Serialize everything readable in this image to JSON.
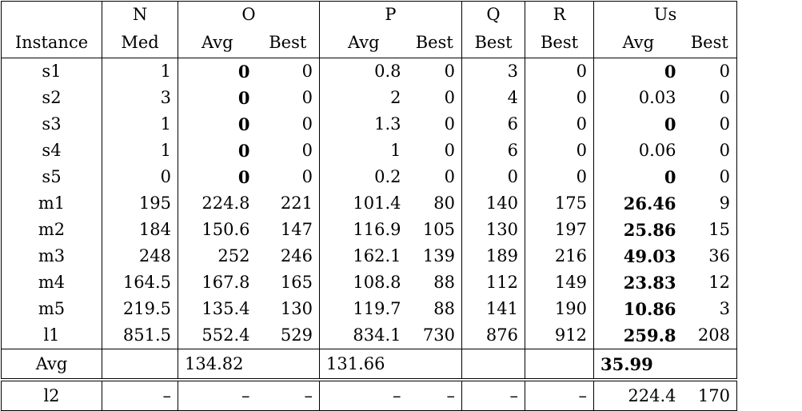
{
  "groups": [
    "",
    "N",
    "O",
    "P",
    "Q",
    "R",
    "Us"
  ],
  "subheaders": [
    "Instance",
    "Med",
    "Avg",
    "Best",
    "Avg",
    "Best",
    "Best",
    "Best",
    "Avg",
    "Best"
  ],
  "rows": [
    {
      "name": "s1",
      "n_med": "1",
      "o_avg": "0",
      "o_best": "0",
      "p_avg": "0.8",
      "p_best": "0",
      "q_best": "3",
      "r_best": "0",
      "us_avg": "0",
      "us_best": "0"
    },
    {
      "name": "s2",
      "n_med": "3",
      "o_avg": "0",
      "o_best": "0",
      "p_avg": "2",
      "p_best": "0",
      "q_best": "4",
      "r_best": "0",
      "us_avg": "0.03",
      "us_best": "0"
    },
    {
      "name": "s3",
      "n_med": "1",
      "o_avg": "0",
      "o_best": "0",
      "p_avg": "1.3",
      "p_best": "0",
      "q_best": "6",
      "r_best": "0",
      "us_avg": "0",
      "us_best": "0"
    },
    {
      "name": "s4",
      "n_med": "1",
      "o_avg": "0",
      "o_best": "0",
      "p_avg": "1",
      "p_best": "0",
      "q_best": "6",
      "r_best": "0",
      "us_avg": "0.06",
      "us_best": "0"
    },
    {
      "name": "s5",
      "n_med": "0",
      "o_avg": "0",
      "o_best": "0",
      "p_avg": "0.2",
      "p_best": "0",
      "q_best": "0",
      "r_best": "0",
      "us_avg": "0",
      "us_best": "0"
    },
    {
      "name": "m1",
      "n_med": "195",
      "o_avg": "224.8",
      "o_best": "221",
      "p_avg": "101.4",
      "p_best": "80",
      "q_best": "140",
      "r_best": "175",
      "us_avg": "26.46",
      "us_best": "9"
    },
    {
      "name": "m2",
      "n_med": "184",
      "o_avg": "150.6",
      "o_best": "147",
      "p_avg": "116.9",
      "p_best": "105",
      "q_best": "130",
      "r_best": "197",
      "us_avg": "25.86",
      "us_best": "15"
    },
    {
      "name": "m3",
      "n_med": "248",
      "o_avg": "252",
      "o_best": "246",
      "p_avg": "162.1",
      "p_best": "139",
      "q_best": "189",
      "r_best": "216",
      "us_avg": "49.03",
      "us_best": "36"
    },
    {
      "name": "m4",
      "n_med": "164.5",
      "o_avg": "167.8",
      "o_best": "165",
      "p_avg": "108.8",
      "p_best": "88",
      "q_best": "112",
      "r_best": "149",
      "us_avg": "23.83",
      "us_best": "12"
    },
    {
      "name": "m5",
      "n_med": "219.5",
      "o_avg": "135.4",
      "o_best": "130",
      "p_avg": "119.7",
      "p_best": "88",
      "q_best": "141",
      "r_best": "190",
      "us_avg": "10.86",
      "us_best": "3"
    },
    {
      "name": "l1",
      "n_med": "851.5",
      "o_avg": "552.4",
      "o_best": "529",
      "p_avg": "834.1",
      "p_best": "730",
      "q_best": "876",
      "r_best": "912",
      "us_avg": "259.8",
      "us_best": "208"
    }
  ],
  "avg_row": {
    "name": "Avg",
    "o_avg": "134.82",
    "p_avg": "131.66",
    "us_avg": "35.99"
  },
  "last_row": {
    "name": "l2",
    "n_med": "–",
    "o_avg": "–",
    "o_best": "–",
    "p_avg": "–",
    "p_best": "–",
    "q_best": "–",
    "r_best": "–",
    "us_avg": "224.4",
    "us_best": "170"
  }
}
